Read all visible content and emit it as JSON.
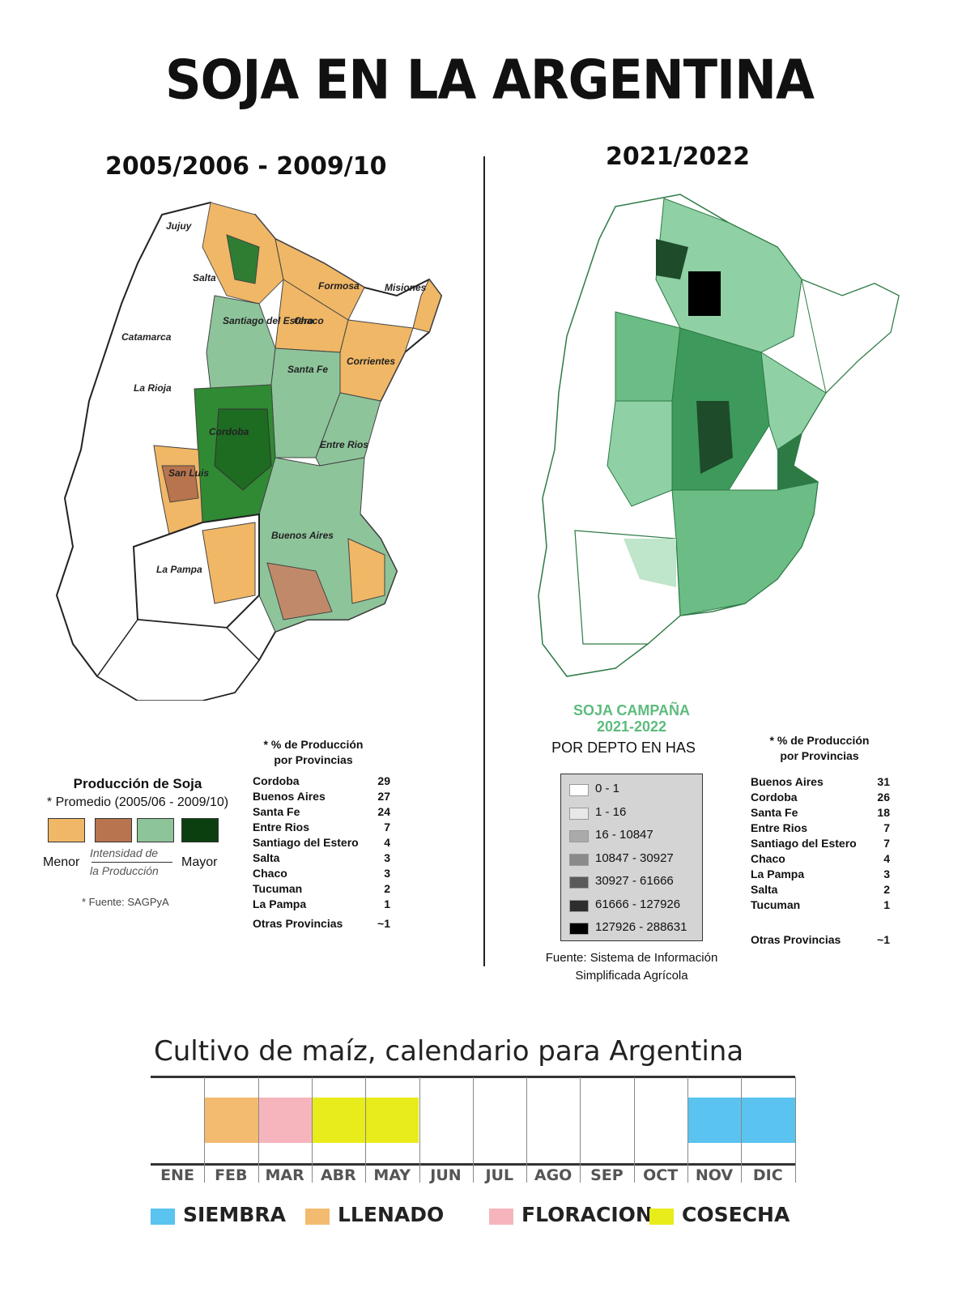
{
  "title": "SOJA EN LA ARGENTINA",
  "left": {
    "period": "2005/2006 - 2009/10",
    "map_labels": [
      {
        "name": "Jujuy"
      },
      {
        "name": "Salta"
      },
      {
        "name": "Formosa"
      },
      {
        "name": "Misiones"
      },
      {
        "name": "Catamarca"
      },
      {
        "name": "Santiago del Estero"
      },
      {
        "name": "Chaco"
      },
      {
        "name": "Corrientes"
      },
      {
        "name": "La Rioja"
      },
      {
        "name": "Santa Fe"
      },
      {
        "name": "Cordoba"
      },
      {
        "name": "Entre Rios"
      },
      {
        "name": "San Luis"
      },
      {
        "name": "Buenos Aires"
      },
      {
        "name": "La Pampa"
      }
    ],
    "legend": {
      "title": "Producción de Soja",
      "subtitle": "* Promedio (2005/06 - 2009/10)",
      "colors": [
        "#f0b766",
        "#b8744e",
        "#8ec49a",
        "#0b3f0f"
      ],
      "low_label": "Menor",
      "high_label": "Mayor",
      "axis_label_1": "Intensidad de",
      "axis_label_2": "la Producción",
      "source": "* Fuente: SAGPyA"
    },
    "provinces": {
      "header_1": "* % de Producción",
      "header_2": "por Provincias",
      "rows": [
        {
          "name": "Cordoba",
          "value": "29"
        },
        {
          "name": "Buenos Aires",
          "value": "27"
        },
        {
          "name": "Santa Fe",
          "value": "24"
        },
        {
          "name": "Entre Rios",
          "value": "7"
        },
        {
          "name": "Santiago del Estero",
          "value": "4"
        },
        {
          "name": "Salta",
          "value": "3"
        },
        {
          "name": "Chaco",
          "value": "3"
        },
        {
          "name": "Tucuman",
          "value": "2"
        },
        {
          "name": "La Pampa",
          "value": "1"
        }
      ],
      "other_name": "Otras Provincias",
      "other_value": "~1"
    }
  },
  "right": {
    "period": "2021/2022",
    "legend": {
      "title_1": "SOJA CAMPAÑA",
      "title_2": "2021-2022",
      "subtitle": "POR DEPTO EN HAS",
      "classes": [
        {
          "label": "0 - 1",
          "color": "#ffffff"
        },
        {
          "label": "1 - 16",
          "color": "#e8e8e8"
        },
        {
          "label": "16 - 10847",
          "color": "#aaaaaa"
        },
        {
          "label": "10847 - 30927",
          "color": "#8a8a8a"
        },
        {
          "label": "30927 - 61666",
          "color": "#5a5a5a"
        },
        {
          "label": "61666 - 127926",
          "color": "#2e2e2e"
        },
        {
          "label": "127926 - 288631",
          "color": "#000000"
        }
      ],
      "source_1": "Fuente: Sistema de Información",
      "source_2": "Simplificada Agrícola"
    },
    "provinces": {
      "header_1": "* % de Producción",
      "header_2": "por Provincias",
      "rows": [
        {
          "name": "Buenos Aires",
          "value": "31"
        },
        {
          "name": "Cordoba",
          "value": "26"
        },
        {
          "name": "Santa Fe",
          "value": "18"
        },
        {
          "name": "Entre Rios",
          "value": "7"
        },
        {
          "name": "Santiago del Estero",
          "value": "7"
        },
        {
          "name": "Chaco",
          "value": "4"
        },
        {
          "name": "La Pampa",
          "value": "3"
        },
        {
          "name": "Salta",
          "value": "2"
        },
        {
          "name": "Tucuman",
          "value": "1"
        }
      ],
      "other_name": "Otras Provincias",
      "other_value": "~1"
    }
  },
  "calendar": {
    "title": "Cultivo de maíz, calendario para Argentina",
    "months": [
      "ENE",
      "FEB",
      "MAR",
      "ABR",
      "MAY",
      "JUN",
      "JUL",
      "AGO",
      "SEP",
      "OCT",
      "NOV",
      "DIC"
    ],
    "phases": [
      {
        "label": "SIEMBRA",
        "color": "#5bc3ef",
        "months": [
          "NOV",
          "DIC"
        ]
      },
      {
        "label": "LLENADO",
        "color": "#f2bb70",
        "months": [
          "FEB"
        ]
      },
      {
        "label": "FLORACION",
        "color": "#f6b5bd",
        "months": [
          "MAR"
        ]
      },
      {
        "label": "COSECHA",
        "color": "#e8ec1a",
        "months": [
          "ABR",
          "MAY"
        ]
      }
    ]
  }
}
